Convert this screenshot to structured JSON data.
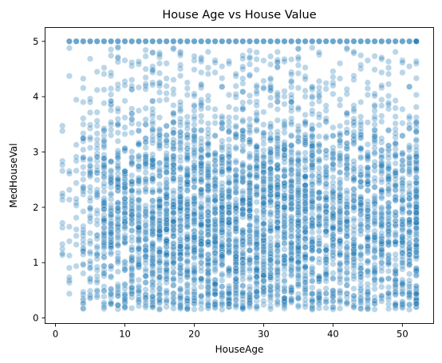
{
  "chart_data": {
    "type": "scatter",
    "title": "House Age vs House Value",
    "xlabel": "HouseAge",
    "ylabel": "MedHouseVal",
    "xlim": [
      -1.5,
      54.5
    ],
    "ylim": [
      -0.1,
      5.25
    ],
    "xticks": [
      0,
      10,
      20,
      30,
      40,
      50
    ],
    "yticks": [
      0,
      1,
      2,
      3,
      4,
      5
    ],
    "grid": false,
    "legend": "none",
    "color": "#1f77b4",
    "x_domain": [
      1,
      52
    ],
    "y_cap": 5.0,
    "summary": {
      "x_values": "integers 1 to 52",
      "y_range": [
        0.15,
        5.0
      ],
      "dense_y_band": [
        0.5,
        4.0
      ],
      "capped_row_at_y": 5.0,
      "dense_columns_at_x": [
        52
      ]
    }
  }
}
